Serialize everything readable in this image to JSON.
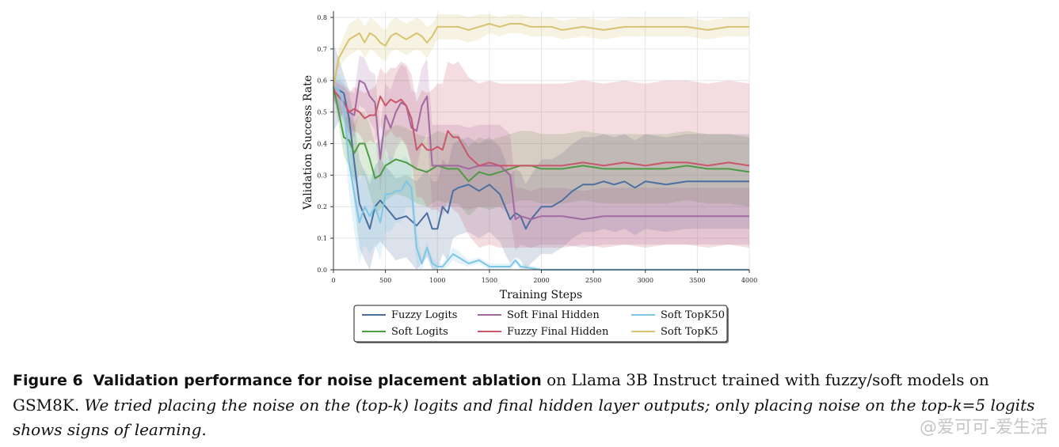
{
  "chart_data": {
    "type": "line",
    "xlabel": "Training Steps",
    "ylabel": "Validation Success Rate",
    "xlim": [
      0,
      4000
    ],
    "ylim": [
      0,
      0.82
    ],
    "xticks": [
      "0",
      "500",
      "1000",
      "1500",
      "2000",
      "2500",
      "3000",
      "3500",
      "4000"
    ],
    "yticks": [
      "0.0",
      "0.1",
      "0.2",
      "0.3",
      "0.4",
      "0.5",
      "0.6",
      "0.7",
      "0.8"
    ],
    "grid": true,
    "legend_position": "bottom-center",
    "series": [
      {
        "name": "Fuzzy Logits",
        "color": "#4a6fa0",
        "x": [
          0,
          100,
          150,
          200,
          250,
          300,
          350,
          400,
          450,
          500,
          600,
          700,
          800,
          900,
          950,
          1000,
          1050,
          1100,
          1150,
          1200,
          1300,
          1400,
          1500,
          1600,
          1650,
          1700,
          1750,
          1800,
          1850,
          1900,
          2000,
          2100,
          2200,
          2300,
          2400,
          2500,
          2600,
          2700,
          2800,
          2900,
          3000,
          3200,
          3400,
          3600,
          3800,
          4000
        ],
        "y": [
          0.58,
          0.56,
          0.48,
          0.34,
          0.21,
          0.17,
          0.13,
          0.2,
          0.22,
          0.2,
          0.16,
          0.17,
          0.14,
          0.18,
          0.13,
          0.13,
          0.2,
          0.18,
          0.25,
          0.26,
          0.27,
          0.25,
          0.27,
          0.24,
          0.2,
          0.16,
          0.18,
          0.17,
          0.13,
          0.16,
          0.2,
          0.2,
          0.22,
          0.25,
          0.27,
          0.27,
          0.28,
          0.27,
          0.28,
          0.26,
          0.28,
          0.27,
          0.28,
          0.28,
          0.28,
          0.28
        ],
        "band": [
          0.14,
          0.06,
          0.09,
          0.13,
          0.14,
          0.14,
          0.14,
          0.13,
          0.13,
          0.13,
          0.13,
          0.13,
          0.14,
          0.14,
          0.15,
          0.15,
          0.15,
          0.15,
          0.15,
          0.15,
          0.15,
          0.15,
          0.15,
          0.15,
          0.15,
          0.14,
          0.14,
          0.14,
          0.14,
          0.14,
          0.15,
          0.15,
          0.15,
          0.15,
          0.15,
          0.15,
          0.15,
          0.15,
          0.15,
          0.15,
          0.15,
          0.15,
          0.15,
          0.15,
          0.15,
          0.15
        ]
      },
      {
        "name": "Soft Logits",
        "color": "#4f9a44",
        "x": [
          0,
          50,
          100,
          150,
          200,
          250,
          300,
          350,
          400,
          450,
          500,
          600,
          700,
          800,
          900,
          1000,
          1100,
          1200,
          1300,
          1400,
          1500,
          1600,
          1700,
          1800,
          1900,
          2000,
          2200,
          2400,
          2600,
          2800,
          3000,
          3200,
          3400,
          3600,
          3800,
          4000
        ],
        "y": [
          0.58,
          0.5,
          0.42,
          0.41,
          0.37,
          0.4,
          0.4,
          0.35,
          0.29,
          0.3,
          0.33,
          0.35,
          0.34,
          0.32,
          0.31,
          0.33,
          0.32,
          0.32,
          0.28,
          0.31,
          0.3,
          0.31,
          0.32,
          0.33,
          0.33,
          0.32,
          0.32,
          0.33,
          0.32,
          0.32,
          0.32,
          0.32,
          0.33,
          0.32,
          0.32,
          0.31
        ],
        "band": [
          0.02,
          0.04,
          0.06,
          0.08,
          0.09,
          0.1,
          0.1,
          0.11,
          0.11,
          0.11,
          0.11,
          0.11,
          0.11,
          0.11,
          0.11,
          0.11,
          0.11,
          0.11,
          0.11,
          0.11,
          0.11,
          0.11,
          0.11,
          0.11,
          0.11,
          0.11,
          0.11,
          0.11,
          0.11,
          0.11,
          0.11,
          0.11,
          0.11,
          0.11,
          0.11,
          0.11
        ]
      },
      {
        "name": "Soft Final Hidden",
        "color": "#a06aa0",
        "x": [
          0,
          50,
          100,
          150,
          200,
          250,
          300,
          350,
          400,
          450,
          500,
          550,
          600,
          650,
          700,
          750,
          800,
          850,
          900,
          950,
          1000,
          1100,
          1200,
          1300,
          1400,
          1500,
          1600,
          1700,
          1750,
          1800,
          1900,
          2000,
          2200,
          2400,
          2600,
          2800,
          3000,
          3200,
          3400,
          3600,
          3800,
          4000
        ],
        "y": [
          0.57,
          0.55,
          0.53,
          0.5,
          0.49,
          0.6,
          0.59,
          0.55,
          0.53,
          0.35,
          0.49,
          0.45,
          0.5,
          0.53,
          0.52,
          0.45,
          0.44,
          0.52,
          0.55,
          0.33,
          0.33,
          0.33,
          0.33,
          0.32,
          0.33,
          0.33,
          0.33,
          0.3,
          0.16,
          0.17,
          0.16,
          0.17,
          0.17,
          0.16,
          0.17,
          0.17,
          0.17,
          0.17,
          0.17,
          0.17,
          0.17,
          0.17
        ],
        "band": [
          0.03,
          0.05,
          0.06,
          0.07,
          0.07,
          0.08,
          0.08,
          0.08,
          0.09,
          0.1,
          0.1,
          0.12,
          0.12,
          0.12,
          0.12,
          0.12,
          0.12,
          0.12,
          0.12,
          0.13,
          0.13,
          0.13,
          0.13,
          0.13,
          0.13,
          0.13,
          0.13,
          0.13,
          0.1,
          0.09,
          0.09,
          0.09,
          0.09,
          0.09,
          0.09,
          0.09,
          0.09,
          0.09,
          0.09,
          0.09,
          0.09,
          0.09
        ]
      },
      {
        "name": "Fuzzy Final Hidden",
        "color": "#c9566a",
        "x": [
          0,
          50,
          100,
          150,
          200,
          250,
          300,
          350,
          400,
          450,
          500,
          550,
          600,
          650,
          700,
          750,
          800,
          850,
          900,
          950,
          1000,
          1050,
          1100,
          1150,
          1200,
          1300,
          1400,
          1500,
          1600,
          1700,
          1800,
          1900,
          2000,
          2200,
          2400,
          2600,
          2800,
          3000,
          3200,
          3400,
          3600,
          3800,
          4000
        ],
        "y": [
          0.57,
          0.55,
          0.53,
          0.5,
          0.51,
          0.5,
          0.48,
          0.49,
          0.49,
          0.55,
          0.52,
          0.54,
          0.53,
          0.54,
          0.52,
          0.48,
          0.38,
          0.4,
          0.38,
          0.38,
          0.39,
          0.38,
          0.44,
          0.42,
          0.42,
          0.36,
          0.33,
          0.34,
          0.33,
          0.33,
          0.33,
          0.33,
          0.33,
          0.33,
          0.34,
          0.33,
          0.34,
          0.33,
          0.34,
          0.34,
          0.33,
          0.34,
          0.33
        ],
        "band": [
          0.03,
          0.04,
          0.05,
          0.06,
          0.07,
          0.07,
          0.08,
          0.08,
          0.09,
          0.09,
          0.1,
          0.1,
          0.11,
          0.12,
          0.13,
          0.14,
          0.15,
          0.17,
          0.18,
          0.19,
          0.2,
          0.21,
          0.22,
          0.23,
          0.24,
          0.25,
          0.26,
          0.26,
          0.26,
          0.26,
          0.26,
          0.26,
          0.26,
          0.26,
          0.26,
          0.26,
          0.26,
          0.26,
          0.26,
          0.26,
          0.26,
          0.26,
          0.26
        ]
      },
      {
        "name": "Soft TopK50",
        "color": "#7fc6e6",
        "x": [
          0,
          50,
          100,
          150,
          200,
          250,
          300,
          350,
          400,
          450,
          500,
          550,
          600,
          650,
          700,
          750,
          800,
          850,
          900,
          950,
          1000,
          1050,
          1100,
          1150,
          1200,
          1300,
          1400,
          1500,
          1600,
          1700,
          1750,
          1800,
          2000,
          2400,
          2800,
          3200,
          3600,
          4000
        ],
        "y": [
          0.58,
          0.57,
          0.52,
          0.34,
          0.24,
          0.15,
          0.2,
          0.17,
          0.2,
          0.15,
          0.24,
          0.24,
          0.25,
          0.25,
          0.28,
          0.26,
          0.07,
          0.02,
          0.07,
          0.02,
          0.01,
          0.01,
          0.03,
          0.05,
          0.04,
          0.02,
          0.03,
          0.01,
          0.01,
          0.01,
          0.03,
          0.01,
          0.0,
          0.0,
          0.0,
          0.0,
          0.0,
          0.0
        ],
        "band": [
          0.03,
          0.05,
          0.08,
          0.1,
          0.12,
          0.13,
          0.12,
          0.12,
          0.12,
          0.12,
          0.12,
          0.12,
          0.1,
          0.1,
          0.08,
          0.06,
          0.06,
          0.02,
          0.02,
          0.02,
          0.01,
          0.01,
          0.02,
          0.02,
          0.02,
          0.01,
          0.01,
          0.01,
          0.01,
          0.01,
          0.01,
          0.01,
          0.005,
          0.005,
          0.005,
          0.005,
          0.005,
          0.005
        ]
      },
      {
        "name": "Soft TopK5",
        "color": "#d8c470",
        "x": [
          0,
          50,
          100,
          150,
          200,
          250,
          300,
          350,
          400,
          450,
          500,
          550,
          600,
          650,
          700,
          750,
          800,
          850,
          900,
          950,
          1000,
          1100,
          1200,
          1300,
          1400,
          1500,
          1600,
          1700,
          1800,
          1900,
          2000,
          2100,
          2200,
          2400,
          2600,
          2800,
          3000,
          3200,
          3400,
          3600,
          3800,
          4000
        ],
        "y": [
          0.58,
          0.67,
          0.7,
          0.73,
          0.74,
          0.75,
          0.72,
          0.75,
          0.74,
          0.72,
          0.71,
          0.74,
          0.75,
          0.74,
          0.73,
          0.74,
          0.75,
          0.74,
          0.72,
          0.74,
          0.77,
          0.77,
          0.77,
          0.76,
          0.77,
          0.78,
          0.77,
          0.78,
          0.78,
          0.77,
          0.77,
          0.77,
          0.76,
          0.77,
          0.76,
          0.77,
          0.77,
          0.77,
          0.77,
          0.76,
          0.77,
          0.77
        ],
        "band": [
          0.02,
          0.03,
          0.04,
          0.05,
          0.05,
          0.05,
          0.05,
          0.05,
          0.05,
          0.05,
          0.05,
          0.05,
          0.05,
          0.05,
          0.05,
          0.05,
          0.05,
          0.05,
          0.05,
          0.04,
          0.04,
          0.04,
          0.04,
          0.04,
          0.04,
          0.03,
          0.03,
          0.03,
          0.03,
          0.03,
          0.03,
          0.03,
          0.03,
          0.03,
          0.03,
          0.03,
          0.03,
          0.03,
          0.03,
          0.03,
          0.03,
          0.03
        ]
      }
    ],
    "legend_order": [
      0,
      2,
      4,
      1,
      3,
      5
    ]
  },
  "caption": {
    "figure_label": "Figure 6",
    "title": "Validation performance for noise placement ablation",
    "body": " on Llama 3B Instruct trained with fuzzy/soft models on GSM8K. ",
    "italic": "We tried placing the noise on the (top-k) logits and final hidden layer outputs; only placing noise on the top-k=5 logits shows signs of learning."
  },
  "watermark": "@爱可可-爱生活"
}
